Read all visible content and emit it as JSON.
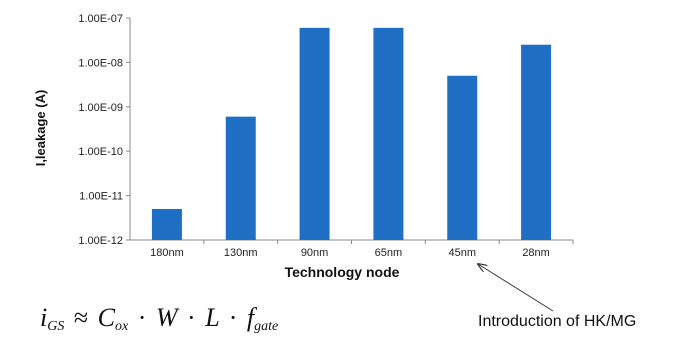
{
  "chart_data": {
    "type": "bar",
    "xlabel": "Technology node",
    "ylabel": "I,leakage (A)",
    "categories": [
      "180nm",
      "130nm",
      "90nm",
      "65nm",
      "45nm",
      "28nm"
    ],
    "values": [
      5e-12,
      6e-10,
      6e-08,
      6e-08,
      5e-09,
      2.5e-08
    ],
    "yscale": "log",
    "ylim": [
      1e-12,
      1e-07
    ],
    "ytick_labels": [
      "1.00E-07",
      "1.00E-08",
      "1.00E-09",
      "1.00E-10",
      "1.00E-11",
      "1.00E-12"
    ],
    "bar_color": "#1f6fc5",
    "grid": false
  },
  "annotation": {
    "text": "Introduction of HK/MG",
    "target_category": "45nm"
  },
  "formula": {
    "lhs": "i",
    "lhs_sub": "GS",
    "approx": "≈",
    "terms": [
      {
        "sym": "C",
        "sub": "ox"
      },
      {
        "sym": "W",
        "sub": ""
      },
      {
        "sym": "L",
        "sub": ""
      },
      {
        "sym": "f",
        "sub": "gate"
      }
    ],
    "dot": "·"
  }
}
